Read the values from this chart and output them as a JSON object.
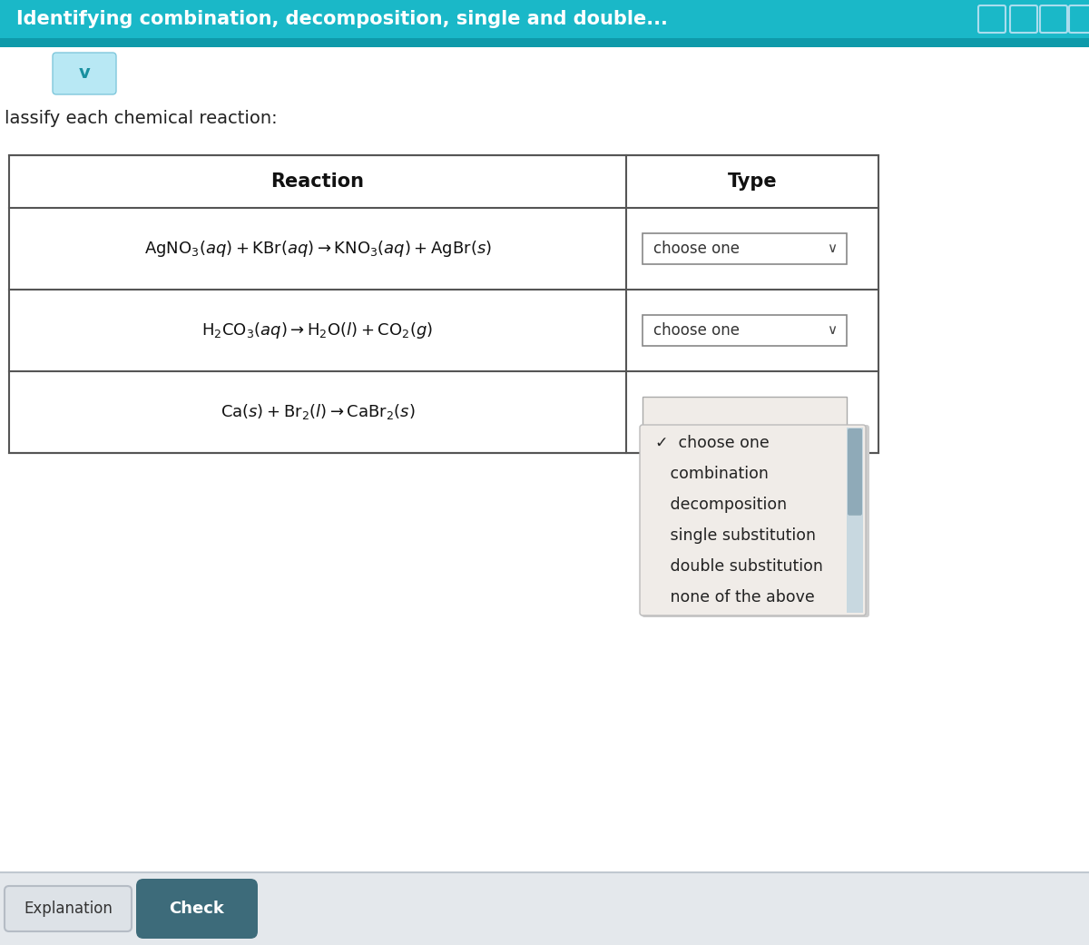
{
  "title": "Identifying combination, decomposition, single and double...",
  "title_bg": "#1ab8c8",
  "title_text_color": "#ffffff",
  "subtitle": "lassify each chemical reaction:",
  "header_reaction": "Reaction",
  "header_type": "Type",
  "dropdown_label": "choose one",
  "dropdown_items": [
    "✓  choose one",
    "   combination",
    "   decomposition",
    "   single substitution",
    "   double substitution",
    "   none of the above"
  ],
  "bg_color": "#ffffff",
  "table_border_color": "#555555",
  "footer_bg": "#e4e8ec",
  "btn_explanation_color": "#dde2e7",
  "btn_check_color": "#3d6b7a",
  "btn_text_color_dark": "#333333",
  "btn_text_color_light": "#ffffff",
  "dropdown_bg": "#f0ece8",
  "dropdown_border": "#999999",
  "scrollbar_track": "#c8d8e0",
  "scrollbar_thumb": "#8faab8",
  "teal_strip": "#0e9aaa"
}
